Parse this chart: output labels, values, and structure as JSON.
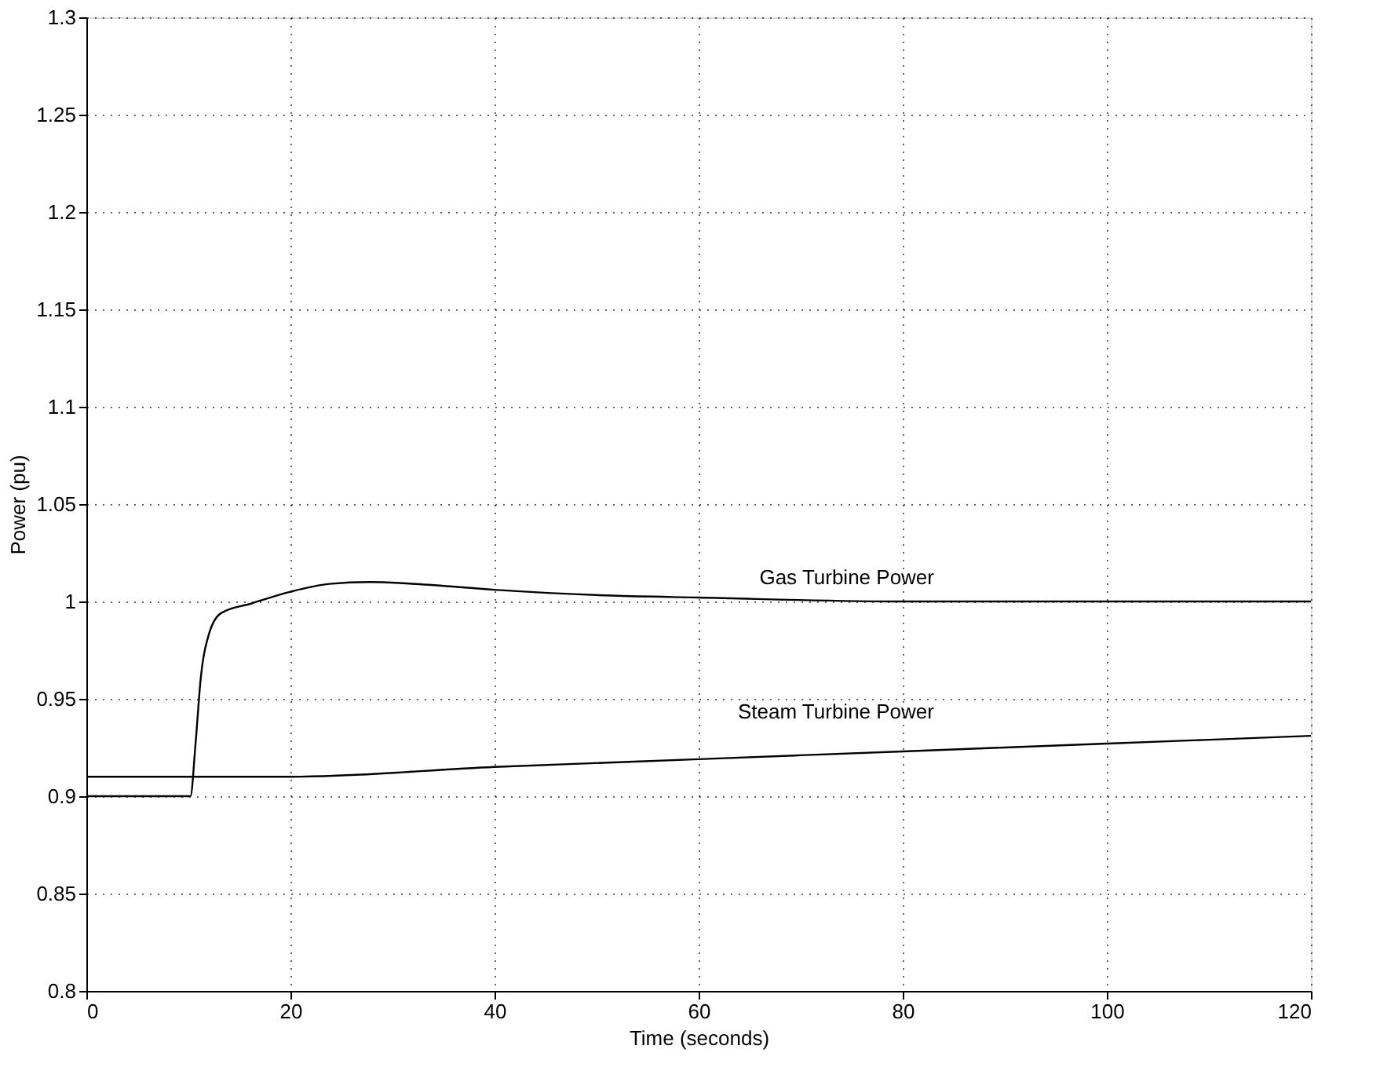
{
  "chart_data": {
    "type": "line",
    "xlabel": "Time (seconds)",
    "ylabel": "Power (pu)",
    "xlim": [
      0,
      120
    ],
    "xticks": [
      0,
      20,
      40,
      60,
      80,
      100,
      120
    ],
    "ylim": [
      0.8,
      1.3
    ],
    "yticks": [
      0.8,
      0.85,
      0.9,
      0.95,
      1,
      1.05,
      1.1,
      1.15,
      1.2,
      1.25,
      1.3
    ],
    "grid": true,
    "marker": "none",
    "line_style": "solid",
    "series": [
      {
        "name": "Gas Turbine Power",
        "color": "#000000",
        "x": [
          0,
          10.2,
          10.7,
          11.2,
          12.0,
          13.2,
          16.2,
          20,
          23.8,
          27.8,
          32.3,
          40,
          51.5,
          60,
          80,
          100,
          120
        ],
        "values": [
          0.9,
          0.9,
          0.927,
          0.96,
          0.983,
          0.994,
          0.999,
          1.005,
          1.009,
          1.01,
          1.009,
          1.006,
          1.003,
          1.002,
          1.0,
          1.0,
          1.0
        ]
      },
      {
        "name": "Steam Turbine Power",
        "color": "#000000",
        "x": [
          0,
          10,
          20,
          40,
          60,
          80,
          100,
          120
        ],
        "values": [
          0.91,
          0.91,
          0.91,
          0.915,
          0.919,
          0.923,
          0.927,
          0.931
        ]
      }
    ]
  }
}
